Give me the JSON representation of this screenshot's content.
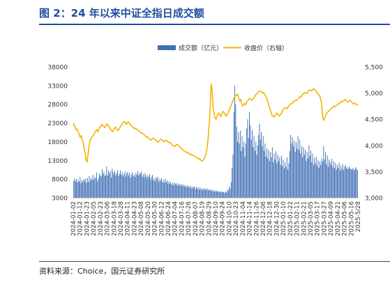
{
  "title": "图 2：24 年以来中证全指日成交额",
  "source": "资料来源：Choice，国元证券研究所",
  "colors": {
    "bar": "#3f6fb4",
    "line": "#f5b400",
    "title": "#1f4e9e"
  },
  "chart_data": {
    "type": "bar+line",
    "title": "图 2：24 年以来中证全指日成交额",
    "legend": {
      "position": "top-center",
      "entries": [
        "成交额（亿元）",
        "收盘价（右轴）"
      ]
    },
    "y_left": {
      "min": 3000,
      "max": 38000,
      "ticks": [
        "3000",
        "8000",
        "13000",
        "18000",
        "23000",
        "28000",
        "33000",
        "38000"
      ]
    },
    "y_right": {
      "min": 3000,
      "max": 5500,
      "ticks": [
        "3,000",
        "3,500",
        "4,000",
        "4,500",
        "5,000",
        "5,500"
      ]
    },
    "x_labels": [
      "2024-01-02",
      "2024-01-12",
      "2024-01-23",
      "2024-02-05",
      "2024-02-23",
      "2024-03-06",
      "2024-03-18",
      "2024-03-28",
      "2024-04-11",
      "2024-04-23",
      "2024-05-08",
      "2024-05-20",
      "2024-05-30",
      "2024-06-12",
      "2024-06-24",
      "2024-07-04",
      "2024-07-16",
      "2024-07-26",
      "2024-08-07",
      "2024-08-19",
      "2024-08-29",
      "2024-09-10",
      "2024-09-24",
      "2024-10-10",
      "2024-10-23",
      "2024-11-04",
      "2024-11-14",
      "2024-11-26",
      "2024-12-06",
      "2024-12-18",
      "2024-12-30",
      "2025-01-10",
      "2025-01-22",
      "2025-02-11",
      "2025-02-21",
      "2025-03-05",
      "2025-03-17",
      "2025-03-27",
      "2025-04-09",
      "2025-04-21",
      "2025-05-06",
      "2025-05-16",
      "2025-5/28"
    ],
    "series": [
      {
        "name": "成交额（亿元）",
        "type": "bar",
        "axis": "left",
        "values": [
          7500,
          8200,
          7400,
          8000,
          7100,
          7800,
          7300,
          8500,
          6900,
          7700,
          7300,
          8000,
          7400,
          8100,
          6900,
          8300,
          7200,
          8800,
          7500,
          8300,
          7900,
          9100,
          7800,
          8600,
          8200,
          9700,
          7400,
          8200,
          9500,
          9000,
          8700,
          10600,
          9400,
          10000,
          8800,
          9200,
          11400,
          8900,
          10300,
          9500,
          10100,
          8400,
          10800,
          9900,
          9300,
          10200,
          9000,
          9600,
          10400,
          8800,
          9400,
          10300,
          9100,
          9800,
          8700,
          9300,
          10000,
          8600,
          9500,
          9900,
          8900,
          9700,
          8300,
          9200,
          9900,
          8800,
          9300,
          8600,
          9700,
          9100,
          10100,
          9000,
          9600,
          9400,
          10000,
          8700,
          9300,
          8500,
          9600,
          9000,
          8200,
          9000,
          8600,
          9300,
          7900,
          8600,
          9100,
          7700,
          8200,
          7400,
          8500,
          8000,
          8600,
          7200,
          8000,
          7600,
          8300,
          7100,
          7800,
          7000,
          8100,
          7200,
          7700,
          6800,
          7400,
          6700,
          7200,
          6500,
          7000,
          6300,
          7100,
          6600,
          6900,
          6400,
          6800,
          6200,
          6700,
          6300,
          6600,
          6100,
          6500,
          6000,
          6400,
          5800,
          6300,
          5900,
          6100,
          5700,
          6200,
          5500,
          6000,
          5700,
          6000,
          5300,
          5900,
          5400,
          5800,
          5100,
          5700,
          5200,
          5500,
          5000,
          5600,
          5200,
          5400,
          5100,
          5500,
          4900,
          5300,
          5000,
          5200,
          4800,
          5100,
          4600,
          5000,
          4700,
          4900,
          4600,
          4800,
          4500,
          4800,
          4400,
          4700,
          4500,
          4600,
          4300,
          4700,
          4400,
          5300,
          4800,
          6000,
          5500,
          7200,
          11000,
          14500,
          26000,
          33000,
          28000,
          22000,
          18000,
          20500,
          17500,
          21000,
          15500,
          19500,
          16500,
          18000,
          14000,
          17500,
          21500,
          24000,
          19000,
          26000,
          22500,
          18500,
          21000,
          16500,
          19500,
          15500,
          18000,
          14500,
          17000,
          19800,
          22800,
          18500,
          20500,
          16800,
          19500,
          15500,
          17500,
          14000,
          16200,
          13500,
          15800,
          12800,
          15200,
          13800,
          16500,
          12500,
          14800,
          13200,
          15500,
          12200,
          14500,
          12800,
          13800,
          11800,
          14200,
          11500,
          13200,
          10800,
          12500,
          11200,
          13800,
          10500,
          12200,
          15500,
          19800,
          17500,
          19200,
          16800,
          18200,
          15200,
          17800,
          16200,
          19500,
          15800,
          18500,
          14800,
          16800,
          13800,
          16500,
          14500,
          15800,
          12800,
          15200,
          13500,
          17000,
          14200,
          15600,
          12500,
          14800,
          11800,
          13600,
          12200,
          14000,
          11500,
          13000,
          11000,
          12800,
          11800,
          13500,
          12600,
          16800,
          13200,
          15200,
          11900,
          14300,
          11200,
          13200,
          12600,
          11800,
          13400,
          11200,
          12800,
          10900,
          12300,
          10500,
          11800,
          11000,
          12400,
          10300,
          11600,
          10700,
          12000,
          10400,
          11400,
          11800,
          10800,
          11200,
          10600,
          11300,
          10900,
          10700,
          10500,
          11000,
          10300,
          10600,
          11200,
          10700,
          10400
        ]
      },
      {
        "name": "收盘价（右轴）",
        "type": "line",
        "axis": "right",
        "values": [
          4420,
          4380,
          4340,
          4300,
          4310,
          4260,
          4200,
          4150,
          4190,
          4120,
          4060,
          3960,
          3860,
          3740,
          3680,
          3820,
          3980,
          4080,
          4140,
          4160,
          4180,
          4210,
          4250,
          4280,
          4300,
          4260,
          4320,
          4340,
          4370,
          4400,
          4380,
          4360,
          4340,
          4380,
          4410,
          4390,
          4360,
          4340,
          4300,
          4290,
          4260,
          4300,
          4330,
          4350,
          4310,
          4280,
          4300,
          4330,
          4360,
          4390,
          4420,
          4440,
          4460,
          4430,
          4400,
          4430,
          4450,
          4420,
          4400,
          4380,
          4360,
          4340,
          4320,
          4330,
          4310,
          4300,
          4290,
          4270,
          4250,
          4230,
          4240,
          4220,
          4200,
          4180,
          4160,
          4170,
          4150,
          4130,
          4110,
          4100,
          4120,
          4140,
          4130,
          4110,
          4090,
          4080,
          4060,
          4080,
          4100,
          4120,
          4110,
          4090,
          4070,
          4080,
          4100,
          4090,
          4070,
          4050,
          4060,
          4040,
          4020,
          4000,
          3990,
          3980,
          4000,
          4020,
          4010,
          3990,
          3970,
          3950,
          3940,
          3920,
          3900,
          3890,
          3880,
          3860,
          3870,
          3850,
          3840,
          3820,
          3830,
          3810,
          3800,
          3790,
          3780,
          3770,
          3760,
          3740,
          3750,
          3730,
          3710,
          3700,
          3720,
          3750,
          3790,
          3860,
          3960,
          4150,
          4400,
          4700,
          5180,
          5050,
          4720,
          4600,
          4520,
          4500,
          4560,
          4600,
          4620,
          4580,
          4550,
          4600,
          4650,
          4630,
          4600,
          4560,
          4580,
          4620,
          4670,
          4700,
          4750,
          4800,
          4850,
          4900,
          4930,
          4950,
          4960,
          4980,
          4900,
          4850,
          4880,
          4800,
          4750,
          4770,
          4800,
          4780,
          4820,
          4850,
          4870,
          4900,
          4880,
          4860,
          4880,
          4900,
          4920,
          4960,
          4980,
          5000,
          5020,
          5030,
          5040,
          5020,
          5000,
          5010,
          4980,
          4960,
          4920,
          4870,
          4800,
          4740,
          4680,
          4620,
          4560,
          4560,
          4540,
          4580,
          4600,
          4620,
          4580,
          4560,
          4580,
          4600,
          4640,
          4680,
          4700,
          4720,
          4710,
          4700,
          4730,
          4760,
          4780,
          4790,
          4800,
          4820,
          4840,
          4860,
          4850,
          4870,
          4880,
          4900,
          4930,
          4920,
          4950,
          4970,
          4990,
          5010,
          5000,
          4990,
          5020,
          5050,
          5060,
          5050,
          5040,
          5060,
          5080,
          5070,
          5040,
          5020,
          5000,
          4970,
          4950,
          4900,
          4820,
          4600,
          4480,
          4500,
          4560,
          4600,
          4630,
          4650,
          4670,
          4690,
          4700,
          4720,
          4730,
          4750,
          4740,
          4760,
          4770,
          4790,
          4800,
          4820,
          4840,
          4830,
          4850,
          4860,
          4880,
          4860,
          4840,
          4830,
          4850,
          4860,
          4840,
          4820,
          4800,
          4790,
          4810,
          4790,
          4780,
          4760
        ]
      }
    ]
  }
}
